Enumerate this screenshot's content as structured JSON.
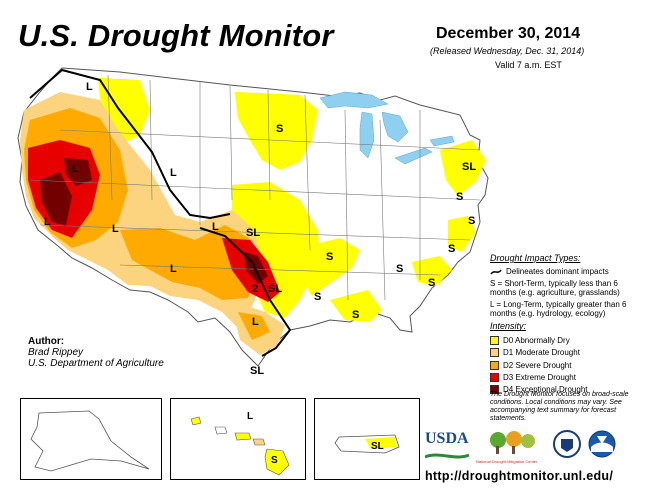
{
  "header": {
    "title": "U.S. Drought Monitor",
    "date": "December 30, 2014",
    "released": "(Released Wednesday, Dec. 31, 2014)",
    "valid": "Valid 7 a.m. EST"
  },
  "author": {
    "heading": "Author:",
    "name": "Brad Rippey",
    "org": "U.S. Department of Agriculture"
  },
  "legend": {
    "impact_title": "Drought Impact Types:",
    "impact_line": "Delineates dominant impacts",
    "short_term": "S = Short-Term, typically less than 6 months (e.g. agriculture, grasslands)",
    "long_term": "L = Long-Term, typically greater than 6 months (e.g. hydrology, ecology)",
    "intensity_title": "Intensity:",
    "levels": [
      {
        "label": "D0 Abnormally Dry",
        "color": "#ffff00"
      },
      {
        "label": "D1 Moderate Drought",
        "color": "#fcd37f"
      },
      {
        "label": "D2 Severe Drought",
        "color": "#ffaa00"
      },
      {
        "label": "D3 Extreme Drought",
        "color": "#e60000"
      },
      {
        "label": "D4 Exceptional Drought",
        "color": "#730000"
      }
    ]
  },
  "note": "The Drought Monitor focuses on broad-scale conditions. Local conditions may vary. See accompanying text summary for forecast statements.",
  "url": "http://droughtmonitor.unl.edu/",
  "logos": {
    "usda": "USDA",
    "ndmc": "National Drought Mitigation Center"
  },
  "map_labels": {
    "s": "S",
    "l": "L",
    "sl": "SL"
  },
  "colors": {
    "d0": "#ffff00",
    "d1": "#fcd37f",
    "d2": "#ffaa00",
    "d3": "#e60000",
    "d4": "#730000",
    "water": "#8fd0f0",
    "border": "#7a7a7a"
  }
}
